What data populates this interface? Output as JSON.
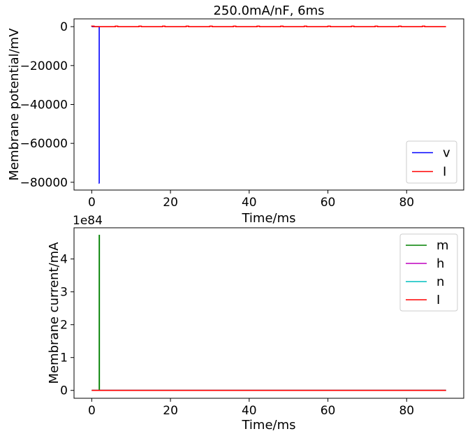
{
  "colors": {
    "v": "#0000ff",
    "m": "#008000",
    "h": "#bf00bf",
    "n": "#00bfbf",
    "I": "#ff0000",
    "frame": "#000000",
    "legend_border": "#cccccc"
  },
  "chart_data": [
    {
      "type": "line",
      "title": "250.0mA/nF, 6ms",
      "xlabel": "Time/ms",
      "ylabel": "Membrane potential/mV",
      "xlim": [
        -4.5,
        94.5
      ],
      "ylim": [
        -84000,
        4000
      ],
      "xticks": [
        0,
        20,
        40,
        60,
        80
      ],
      "xtick_labels": [
        "0",
        "20",
        "40",
        "60",
        "80"
      ],
      "yticks": [
        0,
        -20000,
        -40000,
        -60000,
        -80000
      ],
      "ytick_labels": [
        "0",
        "−20000",
        "−40000",
        "−60000",
        "−80000"
      ],
      "legend_position": "lower-right",
      "series": [
        {
          "name": "v",
          "color_key": "v",
          "x": [
            0,
            1.9,
            1.9,
            1.95
          ],
          "y": [
            0,
            0,
            -80500,
            -80500
          ]
        },
        {
          "name": "I",
          "color_key": "I",
          "pulse_amplitude": 250,
          "pulse_width": 0.6,
          "pulse_period": 6,
          "x_start": 0,
          "x_end": 90
        }
      ]
    },
    {
      "type": "line",
      "title": "",
      "xlabel": "Time/ms",
      "ylabel": "Membrane current/mA",
      "offset_text": "1e84",
      "xlim": [
        -4.5,
        94.5
      ],
      "ylim": [
        -0.24,
        4.95
      ],
      "xticks": [
        0,
        20,
        40,
        60,
        80
      ],
      "xtick_labels": [
        "0",
        "20",
        "40",
        "60",
        "80"
      ],
      "yticks": [
        0,
        1,
        2,
        3,
        4
      ],
      "ytick_labels": [
        "0",
        "1",
        "2",
        "3",
        "4"
      ],
      "legend_position": "upper-right",
      "series": [
        {
          "name": "m",
          "color_key": "m",
          "x": [
            0,
            1.9,
            1.9,
            1.95,
            1.95,
            90
          ],
          "y": [
            0,
            0,
            4.72,
            4.72,
            0,
            0
          ]
        },
        {
          "name": "h",
          "color_key": "h",
          "x": [
            0,
            90
          ],
          "y": [
            0,
            0
          ]
        },
        {
          "name": "n",
          "color_key": "n",
          "x": [
            0,
            90
          ],
          "y": [
            0,
            0
          ]
        },
        {
          "name": "I",
          "color_key": "I",
          "x": [
            0,
            90
          ],
          "y": [
            0,
            0
          ]
        }
      ]
    }
  ]
}
